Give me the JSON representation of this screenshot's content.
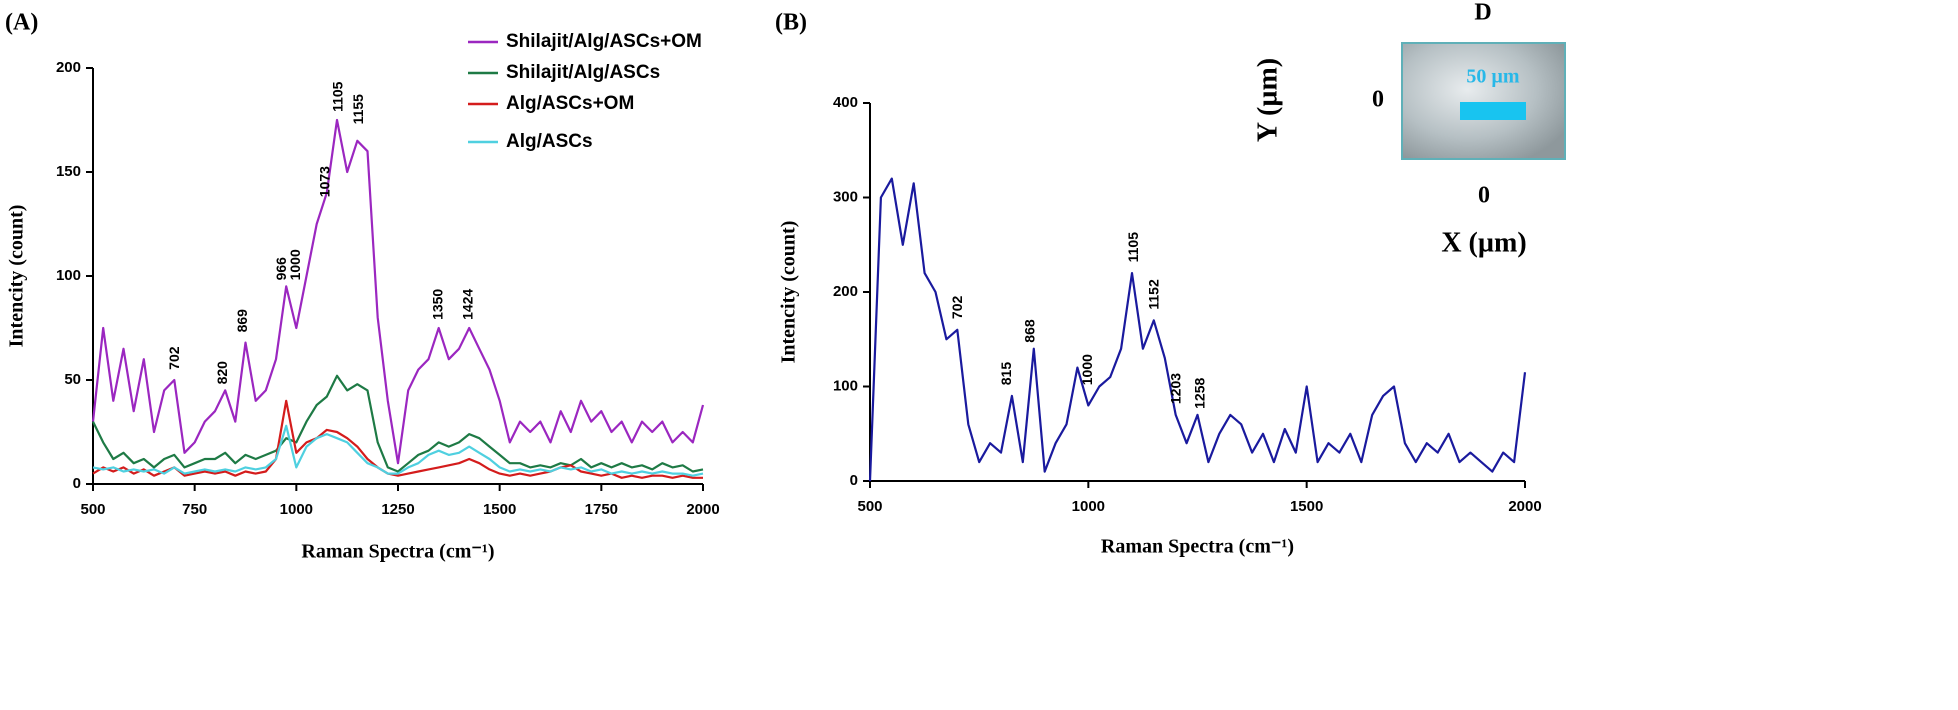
{
  "chart_data": [
    {
      "type": "line",
      "panel_label": "(A)",
      "xlabel": "Raman Spectra (cm⁻¹)",
      "ylabel": "Intencity (count)",
      "x": [
        500,
        525,
        550,
        575,
        600,
        625,
        650,
        675,
        700,
        725,
        750,
        775,
        800,
        825,
        850,
        875,
        900,
        925,
        950,
        975,
        1000,
        1025,
        1050,
        1075,
        1100,
        1125,
        1150,
        1175,
        1200,
        1225,
        1250,
        1275,
        1300,
        1325,
        1350,
        1375,
        1400,
        1425,
        1450,
        1475,
        1500,
        1525,
        1550,
        1575,
        1600,
        1625,
        1650,
        1675,
        1700,
        1725,
        1750,
        1775,
        1800,
        1825,
        1850,
        1875,
        1900,
        1925,
        1950,
        1975,
        2000
      ],
      "series": [
        {
          "name": "Shilajit/Alg/ASCs+OM",
          "color": "#9b27c0",
          "values": [
            30,
            75,
            40,
            65,
            35,
            60,
            25,
            45,
            50,
            15,
            20,
            30,
            35,
            45,
            30,
            68,
            40,
            45,
            60,
            95,
            75,
            100,
            125,
            140,
            175,
            150,
            165,
            160,
            80,
            40,
            10,
            45,
            55,
            60,
            75,
            60,
            65,
            75,
            65,
            55,
            40,
            20,
            30,
            25,
            30,
            20,
            35,
            25,
            40,
            30,
            35,
            25,
            30,
            20,
            30,
            25,
            30,
            20,
            25,
            20,
            38
          ]
        },
        {
          "name": "Shilajit/Alg/ASCs",
          "color": "#1e7a45",
          "values": [
            30,
            20,
            12,
            15,
            10,
            12,
            8,
            12,
            14,
            8,
            10,
            12,
            12,
            15,
            10,
            14,
            12,
            14,
            16,
            22,
            20,
            30,
            38,
            42,
            52,
            45,
            48,
            45,
            20,
            8,
            6,
            10,
            14,
            16,
            20,
            18,
            20,
            24,
            22,
            18,
            14,
            10,
            10,
            8,
            9,
            8,
            10,
            9,
            12,
            8,
            10,
            8,
            10,
            8,
            9,
            7,
            10,
            8,
            9,
            6,
            7
          ]
        },
        {
          "name": "Alg/ASCs+OM",
          "color": "#d41c1c",
          "values": [
            5,
            8,
            6,
            8,
            5,
            7,
            4,
            6,
            8,
            4,
            5,
            6,
            5,
            6,
            4,
            6,
            5,
            6,
            12,
            40,
            15,
            20,
            22,
            26,
            25,
            22,
            18,
            12,
            8,
            5,
            4,
            5,
            6,
            7,
            8,
            9,
            10,
            12,
            10,
            7,
            5,
            4,
            5,
            4,
            5,
            6,
            8,
            9,
            6,
            5,
            4,
            5,
            3,
            4,
            3,
            4,
            4,
            3,
            4,
            3,
            3
          ]
        },
        {
          "name": "Alg/ASCs",
          "color": "#4fd0e0",
          "values": [
            8,
            7,
            8,
            6,
            7,
            6,
            7,
            5,
            8,
            5,
            6,
            7,
            6,
            7,
            6,
            8,
            7,
            8,
            12,
            28,
            8,
            18,
            22,
            24,
            22,
            20,
            15,
            10,
            8,
            5,
            5,
            8,
            10,
            14,
            16,
            14,
            15,
            18,
            15,
            12,
            8,
            6,
            7,
            6,
            7,
            6,
            8,
            7,
            8,
            6,
            7,
            5,
            6,
            5,
            6,
            5,
            6,
            5,
            5,
            4,
            5
          ]
        }
      ],
      "annotations": [
        {
          "text": "702",
          "x": 702,
          "y": 52
        },
        {
          "text": "820",
          "x": 820,
          "y": 45
        },
        {
          "text": "869",
          "x": 869,
          "y": 70
        },
        {
          "text": "966",
          "x": 966,
          "y": 95
        },
        {
          "text": "1000",
          "x": 1000,
          "y": 95
        },
        {
          "text": "1073",
          "x": 1073,
          "y": 135
        },
        {
          "text": "1105",
          "x": 1105,
          "y": 176
        },
        {
          "text": "1155",
          "x": 1155,
          "y": 170
        },
        {
          "text": "1350",
          "x": 1350,
          "y": 76
        },
        {
          "text": "1424",
          "x": 1424,
          "y": 76
        }
      ],
      "xlim": [
        500,
        2000
      ],
      "xticks": [
        500,
        750,
        1000,
        1250,
        1500,
        1750,
        2000
      ],
      "ylim": [
        0,
        200
      ],
      "yticks": [
        0,
        50,
        100,
        150,
        200
      ],
      "legend": "upper right"
    },
    {
      "type": "line",
      "panel_label": "(B)",
      "xlabel": "Raman Spectra (cm⁻¹)",
      "ylabel": "Intencity (count)",
      "x": [
        500,
        525,
        550,
        575,
        600,
        625,
        650,
        675,
        700,
        725,
        750,
        775,
        800,
        825,
        850,
        875,
        900,
        925,
        950,
        975,
        1000,
        1025,
        1050,
        1075,
        1100,
        1125,
        1150,
        1175,
        1200,
        1225,
        1250,
        1275,
        1300,
        1325,
        1350,
        1375,
        1400,
        1425,
        1450,
        1475,
        1500,
        1525,
        1550,
        1575,
        1600,
        1625,
        1650,
        1675,
        1700,
        1725,
        1750,
        1775,
        1800,
        1825,
        1850,
        1875,
        1900,
        1925,
        1950,
        1975,
        2000
      ],
      "series": [
        {
          "color": "#1a1a9e",
          "values": [
            0,
            300,
            320,
            250,
            315,
            220,
            200,
            150,
            160,
            60,
            20,
            40,
            30,
            90,
            20,
            140,
            10,
            40,
            60,
            120,
            80,
            100,
            110,
            140,
            220,
            140,
            170,
            130,
            70,
            40,
            70,
            20,
            50,
            70,
            60,
            30,
            50,
            20,
            55,
            30,
            100,
            20,
            40,
            30,
            50,
            20,
            70,
            90,
            100,
            40,
            20,
            40,
            30,
            50,
            20,
            30,
            20,
            10,
            30,
            20,
            115
          ]
        }
      ],
      "annotations": [
        {
          "text": "702",
          "x": 702,
          "y": 165
        },
        {
          "text": "815",
          "x": 815,
          "y": 95
        },
        {
          "text": "868",
          "x": 868,
          "y": 140
        },
        {
          "text": "1000",
          "x": 1000,
          "y": 95
        },
        {
          "text": "1105",
          "x": 1105,
          "y": 225
        },
        {
          "text": "1152",
          "x": 1152,
          "y": 175
        },
        {
          "text": "1203",
          "x": 1203,
          "y": 75
        },
        {
          "text": "1258",
          "x": 1258,
          "y": 70
        }
      ],
      "xlim": [
        500,
        2000
      ],
      "xticks": [
        500,
        1000,
        1500,
        2000
      ],
      "ylim": [
        0,
        400
      ],
      "yticks": [
        0,
        100,
        200,
        300,
        400
      ],
      "inset": {
        "title": "D",
        "y_label": "Y (µm)",
        "x_label": "X (µm)",
        "y_tick": "0",
        "x_tick": "0",
        "scale_bar": "50 µm"
      }
    }
  ]
}
